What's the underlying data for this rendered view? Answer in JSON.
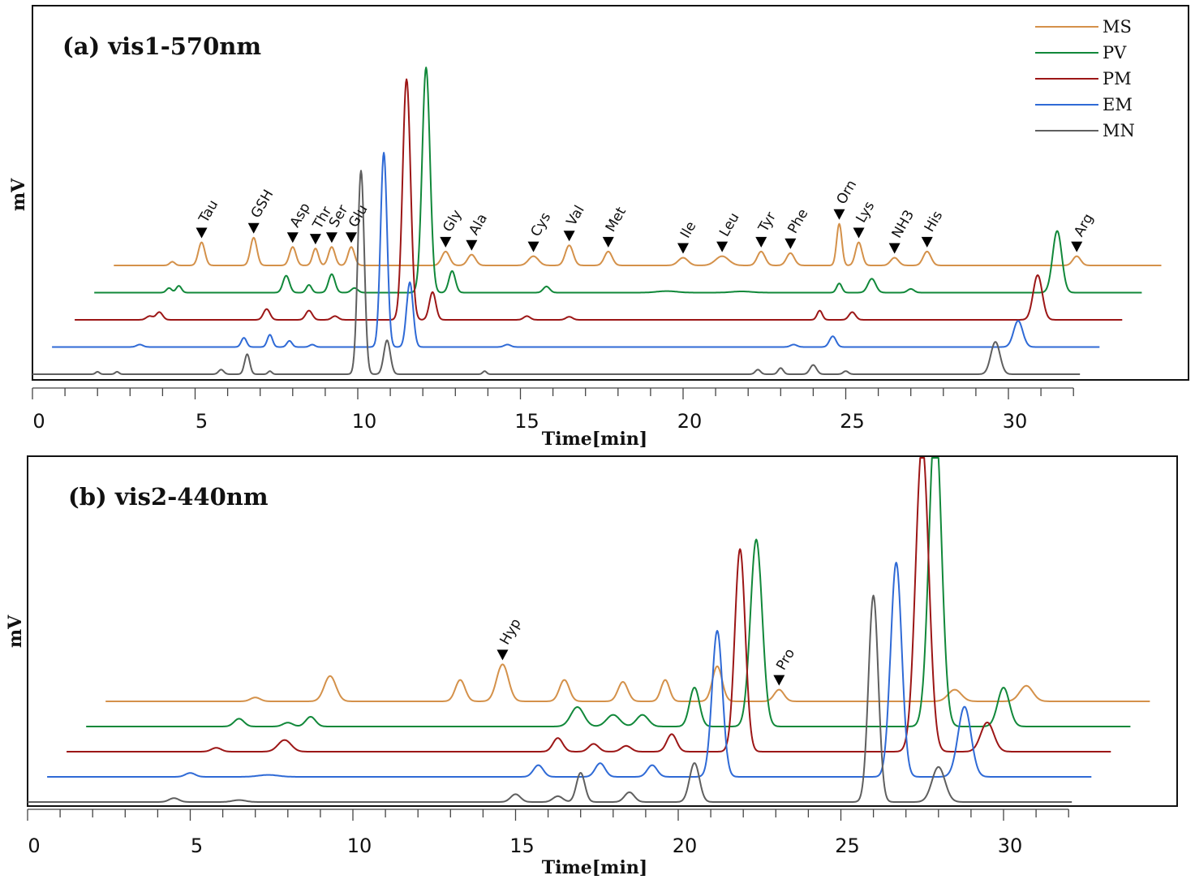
{
  "colors": {
    "MS": "#d4914a",
    "PV": "#11883a",
    "PM": "#9c1616",
    "EM": "#2f6ad6",
    "MN": "#5f5f5f"
  },
  "chart_data": [
    {
      "id": "a",
      "type": "line",
      "title": "(a) vis1-570nm",
      "xlabel": "Time[min]",
      "ylabel": "mV",
      "xlim": [
        0,
        32
      ],
      "xticks": [
        0,
        5,
        10,
        15,
        20,
        25,
        30
      ],
      "legend": {
        "position": "top-right",
        "entries": [
          "MS",
          "PV",
          "PM",
          "EM",
          "MN"
        ]
      },
      "series": [
        {
          "name": "MS",
          "offset": 0,
          "relative_height": 0.1,
          "x_range": [
            2.5,
            34.7
          ],
          "peaks": [
            [
              4.3,
              0.12,
              0.08
            ],
            [
              5.2,
              0.75,
              0.1
            ],
            [
              6.8,
              0.9,
              0.1
            ],
            [
              8.0,
              0.6,
              0.1
            ],
            [
              8.7,
              0.55,
              0.09
            ],
            [
              9.2,
              0.6,
              0.1
            ],
            [
              9.8,
              0.6,
              0.1
            ],
            [
              12.7,
              0.45,
              0.12
            ],
            [
              13.5,
              0.35,
              0.12
            ],
            [
              15.4,
              0.3,
              0.15
            ],
            [
              16.5,
              0.65,
              0.12
            ],
            [
              17.7,
              0.45,
              0.12
            ],
            [
              20.0,
              0.25,
              0.15
            ],
            [
              21.2,
              0.3,
              0.2
            ],
            [
              22.4,
              0.45,
              0.12
            ],
            [
              23.3,
              0.4,
              0.12
            ],
            [
              24.8,
              1.35,
              0.08
            ],
            [
              25.4,
              0.75,
              0.1
            ],
            [
              26.5,
              0.25,
              0.12
            ],
            [
              27.5,
              0.45,
              0.12
            ],
            [
              32.1,
              0.3,
              0.12
            ]
          ]
        },
        {
          "name": "PV",
          "offset": 1,
          "relative_height": 0.1,
          "x_range": [
            1.9,
            34.1
          ],
          "peaks": [
            [
              4.2,
              0.15,
              0.08
            ],
            [
              4.5,
              0.22,
              0.08
            ],
            [
              7.8,
              0.55,
              0.1
            ],
            [
              8.5,
              0.25,
              0.08
            ],
            [
              9.2,
              0.6,
              0.1
            ],
            [
              9.9,
              0.15,
              0.1
            ],
            [
              12.1,
              7.3,
              0.12
            ],
            [
              12.9,
              0.7,
              0.1
            ],
            [
              15.8,
              0.2,
              0.1
            ],
            [
              19.5,
              0.05,
              0.3
            ],
            [
              21.8,
              0.04,
              0.3
            ],
            [
              24.8,
              0.3,
              0.08
            ],
            [
              25.8,
              0.45,
              0.12
            ],
            [
              27.0,
              0.12,
              0.1
            ],
            [
              31.5,
              2.0,
              0.14
            ]
          ]
        },
        {
          "name": "PM",
          "offset": 2,
          "relative_height": 0.1,
          "x_range": [
            1.3,
            33.5
          ],
          "peaks": [
            [
              3.6,
              0.12,
              0.1
            ],
            [
              3.9,
              0.25,
              0.1
            ],
            [
              7.2,
              0.35,
              0.1
            ],
            [
              8.5,
              0.3,
              0.1
            ],
            [
              9.3,
              0.12,
              0.1
            ],
            [
              11.5,
              7.8,
              0.12
            ],
            [
              12.3,
              0.9,
              0.1
            ],
            [
              15.2,
              0.12,
              0.1
            ],
            [
              16.5,
              0.1,
              0.1
            ],
            [
              24.2,
              0.3,
              0.08
            ],
            [
              25.2,
              0.25,
              0.1
            ],
            [
              30.9,
              1.45,
              0.14
            ]
          ]
        },
        {
          "name": "EM",
          "offset": 3,
          "relative_height": 0.1,
          "x_range": [
            0.6,
            32.8
          ],
          "peaks": [
            [
              3.3,
              0.08,
              0.1
            ],
            [
              6.5,
              0.3,
              0.08
            ],
            [
              7.3,
              0.4,
              0.08
            ],
            [
              7.9,
              0.2,
              0.08
            ],
            [
              8.6,
              0.08,
              0.08
            ],
            [
              10.8,
              6.3,
              0.1
            ],
            [
              11.6,
              2.1,
              0.1
            ],
            [
              14.6,
              0.08,
              0.1
            ],
            [
              23.4,
              0.08,
              0.1
            ],
            [
              24.6,
              0.35,
              0.1
            ],
            [
              30.3,
              0.85,
              0.14
            ]
          ]
        },
        {
          "name": "MN",
          "offset": 4,
          "relative_height": 0.1,
          "x_range": [
            0.0,
            32.2
          ],
          "peaks": [
            [
              2.0,
              0.08,
              0.06
            ],
            [
              2.6,
              0.08,
              0.06
            ],
            [
              5.8,
              0.15,
              0.08
            ],
            [
              6.6,
              0.65,
              0.08
            ],
            [
              7.3,
              0.1,
              0.06
            ],
            [
              10.1,
              6.6,
              0.1
            ],
            [
              10.9,
              1.1,
              0.1
            ],
            [
              13.9,
              0.1,
              0.06
            ],
            [
              22.3,
              0.15,
              0.08
            ],
            [
              23.0,
              0.2,
              0.08
            ],
            [
              24.0,
              0.3,
              0.1
            ],
            [
              25.0,
              0.1,
              0.08
            ],
            [
              29.6,
              1.05,
              0.14
            ]
          ]
        }
      ],
      "annotations": [
        {
          "label": "Tau",
          "x": 5.2
        },
        {
          "label": "GSH",
          "x": 6.8
        },
        {
          "label": "Asp",
          "x": 8.0
        },
        {
          "label": "Thr",
          "x": 8.7
        },
        {
          "label": "Ser",
          "x": 9.2
        },
        {
          "label": "Glu",
          "x": 9.8
        },
        {
          "label": "Gly",
          "x": 12.7
        },
        {
          "label": "Ala",
          "x": 13.5
        },
        {
          "label": "Cys",
          "x": 15.4
        },
        {
          "label": "Val",
          "x": 16.5
        },
        {
          "label": "Met",
          "x": 17.7
        },
        {
          "label": "Ile",
          "x": 20.0
        },
        {
          "label": "Leu",
          "x": 21.2
        },
        {
          "label": "Tyr",
          "x": 22.4
        },
        {
          "label": "Phe",
          "x": 23.3
        },
        {
          "label": "Orn",
          "x": 24.8
        },
        {
          "label": "Lys",
          "x": 25.4
        },
        {
          "label": "NH3",
          "x": 26.5
        },
        {
          "label": "His",
          "x": 27.5
        },
        {
          "label": "Arg",
          "x": 32.1
        }
      ]
    },
    {
      "id": "b",
      "type": "line",
      "title": "(b) vis2-440nm",
      "xlabel": "Time[min]",
      "ylabel": "mV",
      "xlim": [
        0,
        32
      ],
      "xticks": [
        0,
        5,
        10,
        15,
        20,
        25,
        30
      ],
      "series": [
        {
          "name": "MS",
          "offset": 0,
          "relative_height": 0.1,
          "x_range": [
            2.4,
            34.5
          ],
          "peaks": [
            [
              7.0,
              0.1,
              0.15
            ],
            [
              9.3,
              0.65,
              0.18
            ],
            [
              13.3,
              0.55,
              0.15
            ],
            [
              14.6,
              0.95,
              0.18
            ],
            [
              16.5,
              0.55,
              0.15
            ],
            [
              18.3,
              0.5,
              0.15
            ],
            [
              19.6,
              0.55,
              0.13
            ],
            [
              21.2,
              0.9,
              0.15
            ],
            [
              23.1,
              0.3,
              0.15
            ],
            [
              28.5,
              0.3,
              0.2
            ],
            [
              30.7,
              0.4,
              0.2
            ]
          ]
        },
        {
          "name": "PV",
          "offset": 1,
          "relative_height": 0.1,
          "x_range": [
            1.8,
            33.9
          ],
          "peaks": [
            [
              6.5,
              0.2,
              0.15
            ],
            [
              8.0,
              0.1,
              0.15
            ],
            [
              8.7,
              0.25,
              0.15
            ],
            [
              16.9,
              0.5,
              0.2
            ],
            [
              18.0,
              0.3,
              0.2
            ],
            [
              18.9,
              0.3,
              0.18
            ],
            [
              20.5,
              1.0,
              0.15
            ],
            [
              22.4,
              4.8,
              0.18
            ],
            [
              27.9,
              8.0,
              0.19
            ],
            [
              30.0,
              1.0,
              0.18
            ]
          ]
        },
        {
          "name": "PM",
          "offset": 2,
          "relative_height": 0.1,
          "x_range": [
            1.2,
            33.3
          ],
          "peaks": [
            [
              5.8,
              0.1,
              0.15
            ],
            [
              7.9,
              0.3,
              0.2
            ],
            [
              16.3,
              0.35,
              0.15
            ],
            [
              17.4,
              0.2,
              0.15
            ],
            [
              18.4,
              0.15,
              0.15
            ],
            [
              19.8,
              0.45,
              0.15
            ],
            [
              21.9,
              5.2,
              0.16
            ],
            [
              27.5,
              7.9,
              0.2
            ],
            [
              29.5,
              0.75,
              0.2
            ]
          ]
        },
        {
          "name": "EM",
          "offset": 3,
          "relative_height": 0.1,
          "x_range": [
            0.6,
            32.7
          ],
          "peaks": [
            [
              5.0,
              0.1,
              0.15
            ],
            [
              7.4,
              0.05,
              0.3
            ],
            [
              15.7,
              0.3,
              0.15
            ],
            [
              17.6,
              0.35,
              0.15
            ],
            [
              19.2,
              0.3,
              0.15
            ],
            [
              21.2,
              3.75,
              0.16
            ],
            [
              26.7,
              5.5,
              0.17
            ],
            [
              28.8,
              1.8,
              0.2
            ]
          ]
        },
        {
          "name": "MN",
          "offset": 4,
          "relative_height": 0.1,
          "x_range": [
            0.0,
            32.1
          ],
          "peaks": [
            [
              4.5,
              0.1,
              0.15
            ],
            [
              6.5,
              0.05,
              0.2
            ],
            [
              15.0,
              0.2,
              0.15
            ],
            [
              16.3,
              0.15,
              0.15
            ],
            [
              17.0,
              0.75,
              0.13
            ],
            [
              18.5,
              0.25,
              0.15
            ],
            [
              20.5,
              1.0,
              0.15
            ],
            [
              26.0,
              5.3,
              0.15
            ],
            [
              28.0,
              0.9,
              0.2
            ]
          ]
        }
      ],
      "annotations": [
        {
          "label": "Hyp",
          "x": 14.6
        },
        {
          "label": "Pro",
          "x": 23.1
        }
      ]
    }
  ]
}
